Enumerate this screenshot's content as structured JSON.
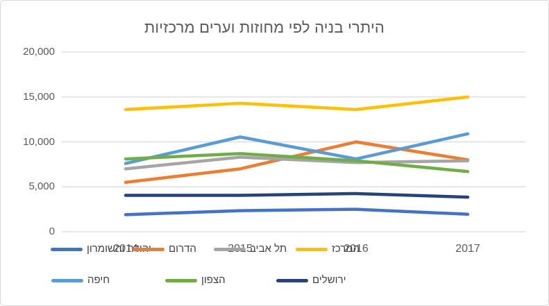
{
  "chart_data": {
    "type": "line",
    "title": "היתרי בניה לפי מחוזות וערים מרכזיות",
    "categories": [
      "2014",
      "2015",
      "2016",
      "2017"
    ],
    "series": [
      {
        "name": "יהודה והשומרון",
        "color": "#4472C4",
        "values": [
          1900,
          2350,
          2500,
          1950
        ]
      },
      {
        "name": "הדרום",
        "color": "#ED7D31",
        "values": [
          5500,
          7000,
          10000,
          8000
        ]
      },
      {
        "name": "תל אביב",
        "color": "#A5A5A5",
        "values": [
          7000,
          8300,
          7700,
          7900
        ]
      },
      {
        "name": "המרכז",
        "color": "#FFC000",
        "values": [
          13600,
          14300,
          13600,
          15000
        ]
      },
      {
        "name": "חיפה",
        "color": "#5B9BD5",
        "values": [
          7600,
          10550,
          8100,
          10900
        ]
      },
      {
        "name": "הצפון",
        "color": "#70AD47",
        "values": [
          8100,
          8700,
          7900,
          6700
        ]
      },
      {
        "name": "ירושלים",
        "color": "#264478",
        "values": [
          4050,
          4050,
          4250,
          3850
        ]
      }
    ],
    "yticks": [
      0,
      5000,
      10000,
      15000,
      20000
    ],
    "ytick_labels": [
      "0",
      "5,000",
      "10,000",
      "15,000",
      "20,000"
    ],
    "ylim": [
      0,
      20000
    ],
    "grid": true,
    "gridline_color": "#D9D9D9",
    "legend_position": "bottom",
    "legend_rows": [
      [
        0,
        1,
        2,
        3
      ],
      [
        4,
        5,
        6
      ]
    ]
  }
}
